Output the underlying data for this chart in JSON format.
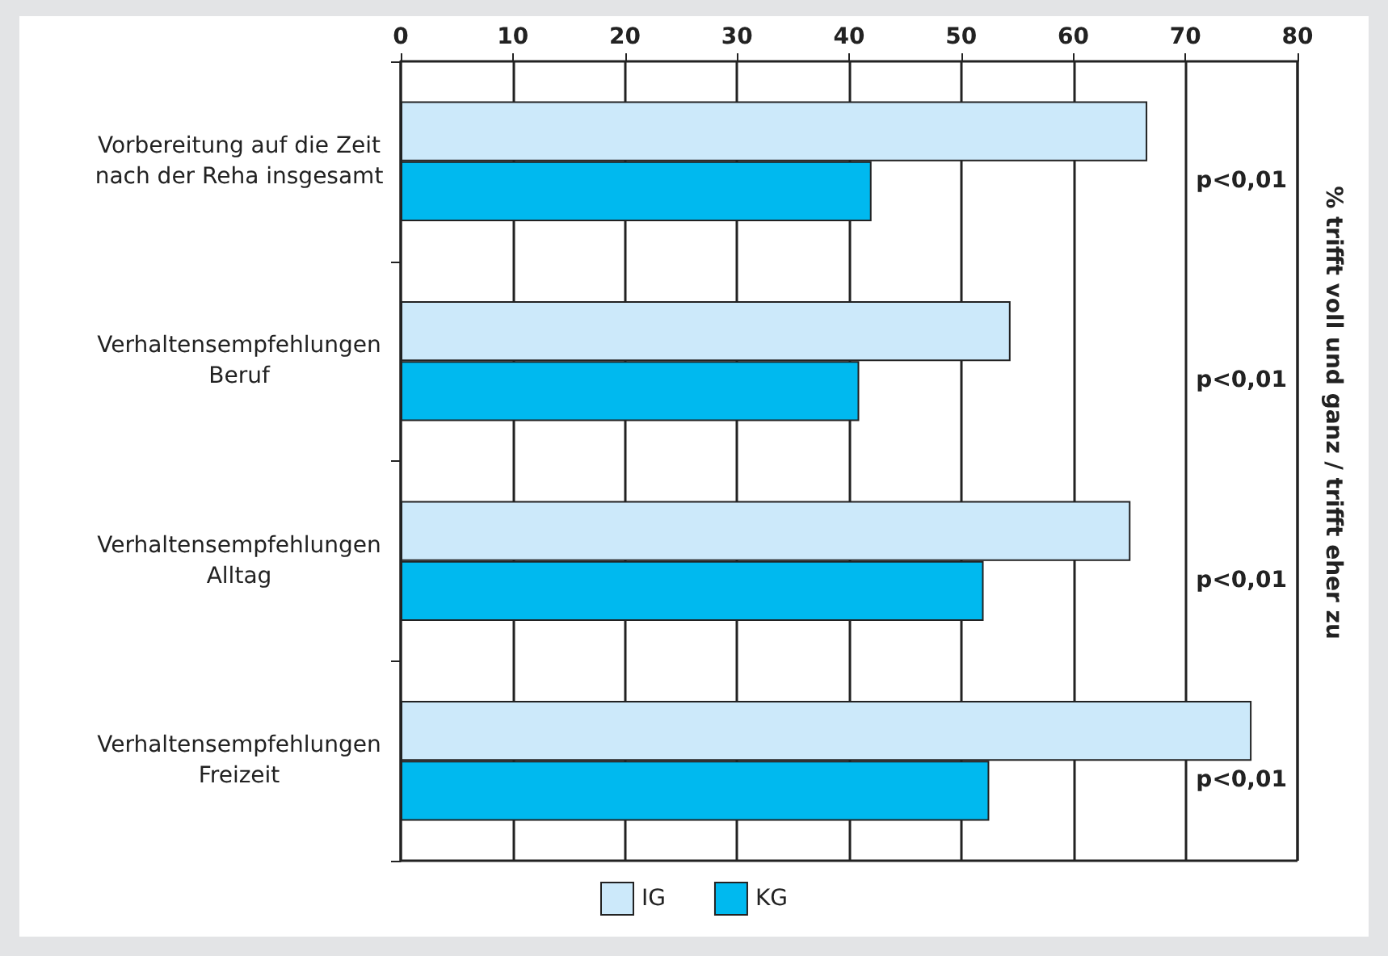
{
  "chart_data": {
    "type": "bar",
    "orientation": "horizontal",
    "categories": [
      "Vorbereitung auf die Zeit\nnach der Reha insgesamt",
      "Verhaltensempfehlungen\nBeruf",
      "Verhaltensempfehlungen\nAlltag",
      "Verhaltensempfehlungen\nFreizeit"
    ],
    "series": [
      {
        "name": "IG",
        "color": "#cce9fa",
        "values": [
          66.6,
          54.4,
          65.1,
          75.9
        ]
      },
      {
        "name": "KG",
        "color": "#00b9ef",
        "values": [
          42.0,
          40.9,
          52.0,
          52.5
        ]
      }
    ],
    "xlim": [
      0,
      80
    ],
    "xticks": [
      0,
      10,
      20,
      30,
      40,
      50,
      60,
      70,
      80
    ],
    "y2label": "% trifft voll und ganz / trifft eher zu",
    "annotations": [
      "p<0,01",
      "p<0,01",
      "p<0,01",
      "p<0,01"
    ],
    "grid": "x",
    "legend": "bottom"
  }
}
